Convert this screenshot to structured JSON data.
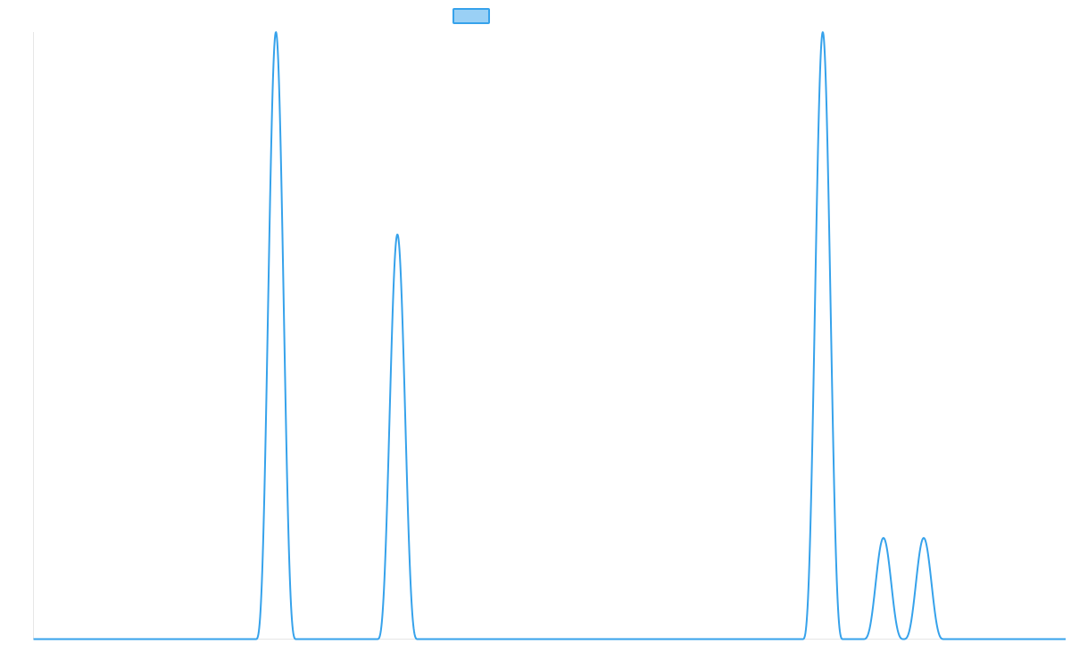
{
  "chart_data": {
    "type": "line",
    "legend": {
      "position": "top-center",
      "series_name": ""
    },
    "grid": false,
    "colors": {
      "line": "#36a2eb",
      "legend_fill": "#9ad0f5",
      "axis": "#e6e6e6"
    },
    "x_range": [
      0,
      1
    ],
    "ylim": [
      0,
      3
    ],
    "peaks": [
      {
        "x": 0.2349,
        "height": 3.0,
        "half_width": 0.0195
      },
      {
        "x": 0.3526,
        "height": 2.0,
        "half_width": 0.0195
      },
      {
        "x": 0.7647,
        "height": 3.0,
        "half_width": 0.0195
      },
      {
        "x": 0.8235,
        "height": 0.5,
        "half_width": 0.0195
      },
      {
        "x": 0.8625,
        "height": 0.5,
        "half_width": 0.0195
      }
    ]
  }
}
